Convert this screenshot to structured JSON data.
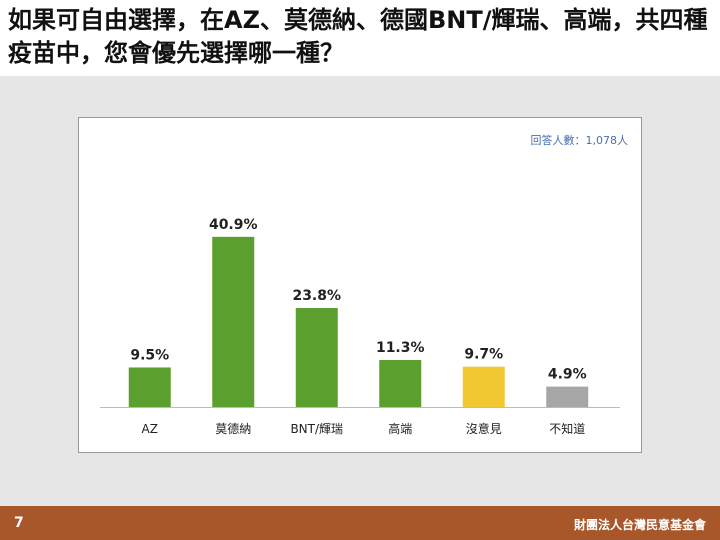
{
  "chart_data": {
    "type": "bar",
    "title": "如果可自由選擇，在AZ、莫德納、德國BNT/輝瑞、高端，共四種疫苗中，您會優先選擇哪一種？",
    "annotation": "回答人數：1,078人",
    "categories": [
      "AZ",
      "莫德納",
      "BNT/輝瑞",
      "高端",
      "沒意見",
      "不知道"
    ],
    "values": [
      9.5,
      40.9,
      23.8,
      11.3,
      9.7,
      4.9
    ],
    "value_labels": [
      "9.5%",
      "40.9%",
      "23.8%",
      "11.3%",
      "9.7%",
      "4.9%"
    ],
    "colors": [
      "#5b9f2f",
      "#5b9f2f",
      "#5b9f2f",
      "#5b9f2f",
      "#f2c832",
      "#a6a6a6"
    ]
  },
  "footer": {
    "page": "7",
    "organization": "財團法人台灣民意基金會"
  }
}
